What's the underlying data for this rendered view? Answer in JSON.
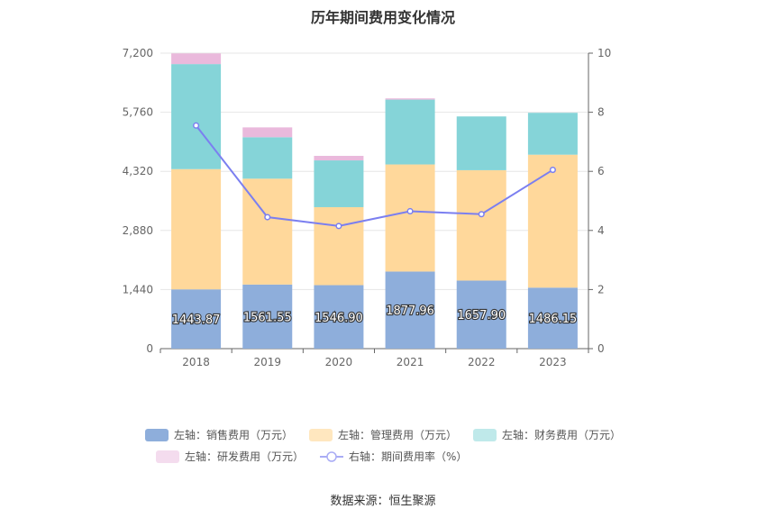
{
  "chart_data": {
    "type": "bar",
    "title": "历年期间费用变化情况",
    "categories": [
      "2018",
      "2019",
      "2020",
      "2021",
      "2022",
      "2023"
    ],
    "stacked": true,
    "series": [
      {
        "name": "左轴：销售费用（万元）",
        "axis": "left",
        "color": "#8eaedb",
        "values": [
          1443.87,
          1561.55,
          1546.9,
          1877.96,
          1657.9,
          1486.15
        ],
        "labels": [
          "1443.87",
          "1561.55",
          "1546.90",
          "1877.96",
          "1657.90",
          "1486.15"
        ]
      },
      {
        "name": "左轴：管理费用（万元）",
        "axis": "left",
        "color": "#ffd89b",
        "values": [
          2930,
          2580,
          1900,
          2610,
          2690,
          3240
        ]
      },
      {
        "name": "左轴：财务费用（万元）",
        "axis": "left",
        "color": "#85d4d8",
        "values": [
          2560,
          1010,
          1140,
          1580,
          1310,
          1020
        ]
      },
      {
        "name": "左轴：研发费用（万元）",
        "axis": "left",
        "color": "#eab9dc",
        "values": [
          260,
          240,
          110,
          30,
          0,
          0
        ]
      }
    ],
    "line": {
      "name": "右轴：期间费用率（%）",
      "axis": "right",
      "color": "#7b7ff0",
      "values": [
        7.55,
        4.45,
        4.15,
        4.65,
        4.55,
        6.05
      ]
    },
    "y_left": {
      "min": 0,
      "max": 7200,
      "ticks": [
        "0",
        "1,440",
        "2,880",
        "4,320",
        "5,760",
        "7,200"
      ]
    },
    "y_right": {
      "min": 0,
      "max": 10,
      "ticks": [
        "0",
        "2",
        "4",
        "6",
        "8",
        "10"
      ]
    },
    "grid": true,
    "legend_position": "bottom"
  },
  "source_text": "数据来源：恒生聚源"
}
